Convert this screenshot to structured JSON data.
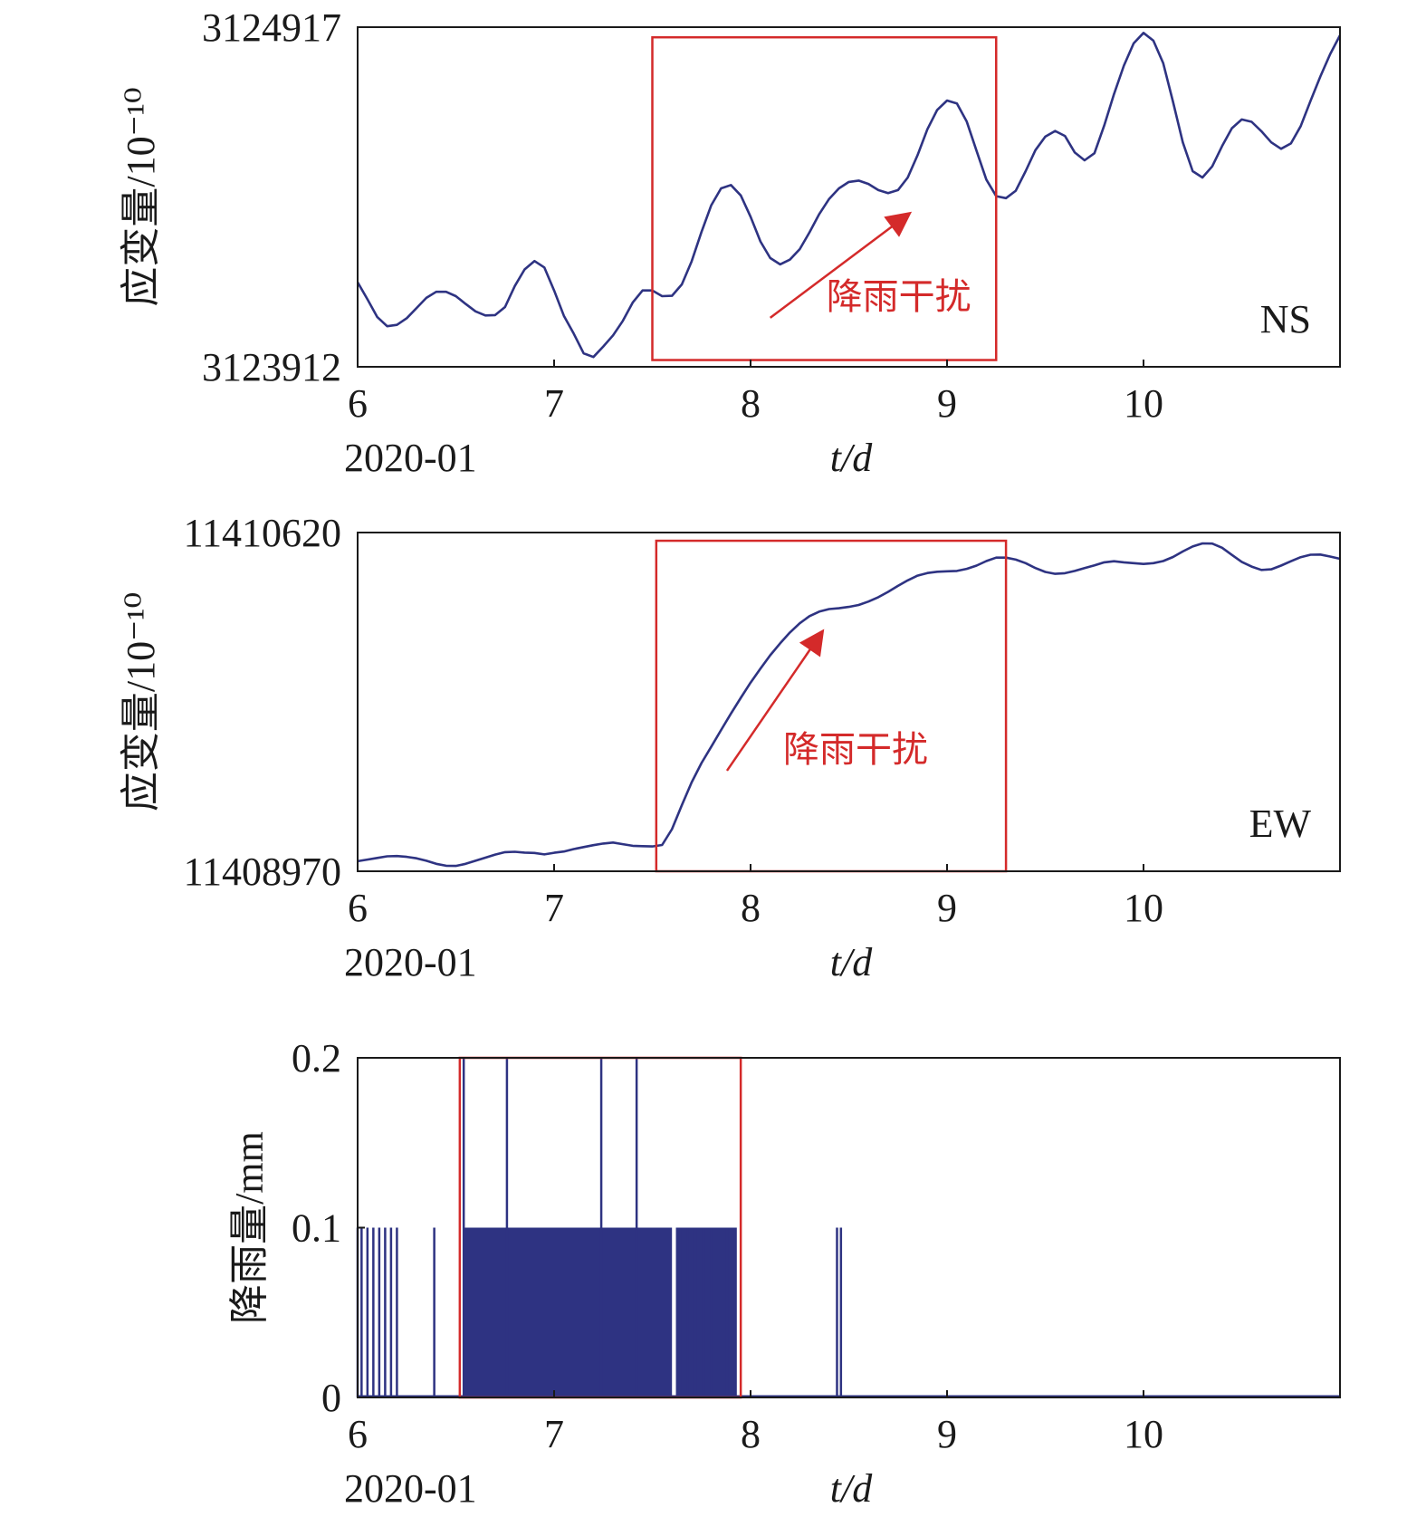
{
  "colors": {
    "series": "#2e3382",
    "highlight": "#d42a2a",
    "axis": "#1a1a1a"
  },
  "x_date_label": "2020-01",
  "x_unit_label": "t/d",
  "chart_data": [
    {
      "type": "line",
      "ylabel": "应变量/10⁻¹⁰",
      "ylim": [
        3123912,
        3124917
      ],
      "yticks": [
        "3123912",
        "3124917"
      ],
      "xlim": [
        6,
        11
      ],
      "xticks": [
        "6",
        "7",
        "8",
        "9",
        "10"
      ],
      "xlabel": "t/d",
      "x_date_label": "2020-01",
      "channel_label": "NS",
      "annotation": {
        "text": "降雨干扰",
        "arrow_from": [
          8.1,
          3124057
        ],
        "arrow_to": [
          8.8,
          3124362
        ]
      },
      "highlight": {
        "x": [
          7.5,
          9.25
        ],
        "y": [
          3123932,
          3124887
        ]
      },
      "series": [
        {
          "x": [
            6.0,
            6.05,
            6.1,
            6.15,
            6.2,
            6.25,
            6.3,
            6.35,
            6.4,
            6.45,
            6.5,
            6.55,
            6.6,
            6.65,
            6.7,
            6.75,
            6.8,
            6.85,
            6.9,
            6.95,
            7.0,
            7.05,
            7.1,
            7.15,
            7.2,
            7.25,
            7.3,
            7.35,
            7.4,
            7.45,
            7.5,
            7.55,
            7.6,
            7.65,
            7.7,
            7.75,
            7.8,
            7.85,
            7.9,
            7.95,
            8.0,
            8.05,
            8.1,
            8.15,
            8.2,
            8.25,
            8.3,
            8.35,
            8.4,
            8.45,
            8.5,
            8.55,
            8.6,
            8.65,
            8.7,
            8.75,
            8.8,
            8.85,
            8.9,
            8.95,
            9.0,
            9.05,
            9.1,
            9.15,
            9.2,
            9.25,
            9.3,
            9.35,
            9.4,
            9.45,
            9.5,
            9.55,
            9.6,
            9.65,
            9.7,
            9.75,
            9.8,
            9.85,
            9.9,
            9.95,
            10.0,
            10.05,
            10.1,
            10.15,
            10.2,
            10.25,
            10.3,
            10.35,
            10.4,
            10.45,
            10.5,
            10.55,
            10.6,
            10.65,
            10.7,
            10.75,
            10.8,
            10.85,
            10.9,
            10.95,
            11.0
          ],
          "values": [
            3124162,
            3124112,
            3124059,
            3124032,
            3124036,
            3124056,
            3124086,
            3124116,
            3124134,
            3124134,
            3124121,
            3124098,
            3124076,
            3124064,
            3124065,
            3124089,
            3124151,
            3124200,
            3124225,
            3124206,
            3124138,
            3124063,
            3124010,
            3123952,
            3123941,
            3123972,
            3124005,
            3124048,
            3124102,
            3124138,
            3124138,
            3124121,
            3124122,
            3124156,
            3124224,
            3124311,
            3124390,
            3124440,
            3124450,
            3124419,
            3124356,
            3124283,
            3124234,
            3124215,
            3124229,
            3124260,
            3124310,
            3124364,
            3124409,
            3124440,
            3124459,
            3124463,
            3124453,
            3124435,
            3124426,
            3124435,
            3124472,
            3124538,
            3124615,
            3124672,
            3124700,
            3124691,
            3124638,
            3124551,
            3124466,
            3124417,
            3124411,
            3124433,
            3124491,
            3124553,
            3124593,
            3124610,
            3124595,
            3124546,
            3124523,
            3124544,
            3124626,
            3124719,
            3124803,
            3124869,
            3124900,
            3124877,
            3124811,
            3124696,
            3124576,
            3124491,
            3124472,
            3124505,
            3124565,
            3124618,
            3124644,
            3124637,
            3124609,
            3124576,
            3124557,
            3124573,
            3124624,
            3124699,
            3124771,
            3124837,
            3124893
          ]
        }
      ]
    },
    {
      "type": "line",
      "ylabel": "应变量/10⁻¹⁰",
      "ylim": [
        11408970,
        11410620
      ],
      "yticks": [
        "11408970",
        "11410620"
      ],
      "xlim": [
        6,
        11
      ],
      "xticks": [
        "6",
        "7",
        "8",
        "9",
        "10"
      ],
      "xlabel": "t/d",
      "x_date_label": "2020-01",
      "channel_label": "EW",
      "annotation": {
        "text": "降雨干扰",
        "arrow_from": [
          7.88,
          11409460
        ],
        "arrow_to": [
          8.36,
          11410130
        ]
      },
      "highlight": {
        "x": [
          7.52,
          9.3
        ],
        "y": [
          11408970,
          11410580
        ]
      },
      "series": [
        {
          "x": [
            6.0,
            6.05,
            6.1,
            6.15,
            6.2,
            6.25,
            6.3,
            6.35,
            6.4,
            6.45,
            6.5,
            6.55,
            6.6,
            6.65,
            6.7,
            6.75,
            6.8,
            6.85,
            6.9,
            6.95,
            7.0,
            7.05,
            7.1,
            7.15,
            7.2,
            7.25,
            7.3,
            7.35,
            7.4,
            7.45,
            7.5,
            7.55,
            7.6,
            7.65,
            7.7,
            7.75,
            7.8,
            7.85,
            7.9,
            7.95,
            8.0,
            8.05,
            8.1,
            8.15,
            8.2,
            8.25,
            8.3,
            8.35,
            8.4,
            8.45,
            8.5,
            8.55,
            8.6,
            8.65,
            8.7,
            8.75,
            8.8,
            8.85,
            8.9,
            8.95,
            9.0,
            9.05,
            9.1,
            9.15,
            9.2,
            9.25,
            9.3,
            9.35,
            9.4,
            9.45,
            9.5,
            9.55,
            9.6,
            9.65,
            9.7,
            9.75,
            9.8,
            9.85,
            9.9,
            9.95,
            10.0,
            10.05,
            10.1,
            10.15,
            10.2,
            10.25,
            10.3,
            10.35,
            10.4,
            10.45,
            10.5,
            10.55,
            10.6,
            10.65,
            10.7,
            10.75,
            10.8,
            10.85,
            10.9,
            10.95,
            11.0
          ],
          "values": [
            11409019,
            11409027,
            11409035,
            11409043,
            11409044,
            11409040,
            11409033,
            11409021,
            11409006,
            11408997,
            11408996,
            11409006,
            11409021,
            11409036,
            11409051,
            11409063,
            11409065,
            11409061,
            11409059,
            11409052,
            11409060,
            11409066,
            11409078,
            11409088,
            11409097,
            11409105,
            11409110,
            11409102,
            11409094,
            11409092,
            11409091,
            11409098,
            11409175,
            11409292,
            11409403,
            11409497,
            11409577,
            11409658,
            11409738,
            11409815,
            11409889,
            11409957,
            11410022,
            11410080,
            11410133,
            11410178,
            11410213,
            11410235,
            11410247,
            11410251,
            11410258,
            11410267,
            11410284,
            11410305,
            11410331,
            11410360,
            11410387,
            11410410,
            11410423,
            11410429,
            11410431,
            11410433,
            11410443,
            11410459,
            11410481,
            11410498,
            11410498,
            11410488,
            11410471,
            11410447,
            11410428,
            11410419,
            11410422,
            11410433,
            11410447,
            11410460,
            11410475,
            11410480,
            11410475,
            11410471,
            11410467,
            11410471,
            11410481,
            11410501,
            11410528,
            11410552,
            11410567,
            11410566,
            11410546,
            11410511,
            11410477,
            11410454,
            11410438,
            11410441,
            11410459,
            11410480,
            11410500,
            11410512,
            11410513,
            11410503,
            11410492
          ]
        }
      ]
    },
    {
      "type": "bar",
      "ylabel": "降雨量/mm",
      "ylim": [
        0,
        0.2
      ],
      "yticks": [
        "0",
        "0.1",
        "0.2"
      ],
      "xlim": [
        6,
        11
      ],
      "xticks": [
        "6",
        "7",
        "8",
        "9",
        "10"
      ],
      "xlabel": "t/d",
      "x_date_label": "2020-01",
      "highlight": {
        "x": [
          6.52,
          7.95
        ],
        "y": [
          0,
          0.2
        ]
      },
      "dense_blocks": [
        {
          "x": [
            6.54,
            7.6
          ],
          "value": 0.1
        },
        {
          "x": [
            7.62,
            7.93
          ],
          "value": 0.1
        }
      ],
      "series": [
        {
          "name": "降雨量",
          "x": [
            6.0,
            6.02,
            6.05,
            6.08,
            6.11,
            6.14,
            6.17,
            6.2,
            6.39,
            6.54,
            6.76,
            7.24,
            7.42,
            7.64,
            7.68,
            7.72,
            7.76,
            7.8,
            7.84,
            7.88,
            7.92,
            8.44,
            8.46
          ],
          "values": [
            0.1,
            0.1,
            0.1,
            0.1,
            0.1,
            0.1,
            0.1,
            0.1,
            0.1,
            0.2,
            0.2,
            0.2,
            0.2,
            0.1,
            0.1,
            0.1,
            0.1,
            0.1,
            0.1,
            0.1,
            0.1,
            0.1,
            0.1
          ]
        }
      ]
    }
  ]
}
